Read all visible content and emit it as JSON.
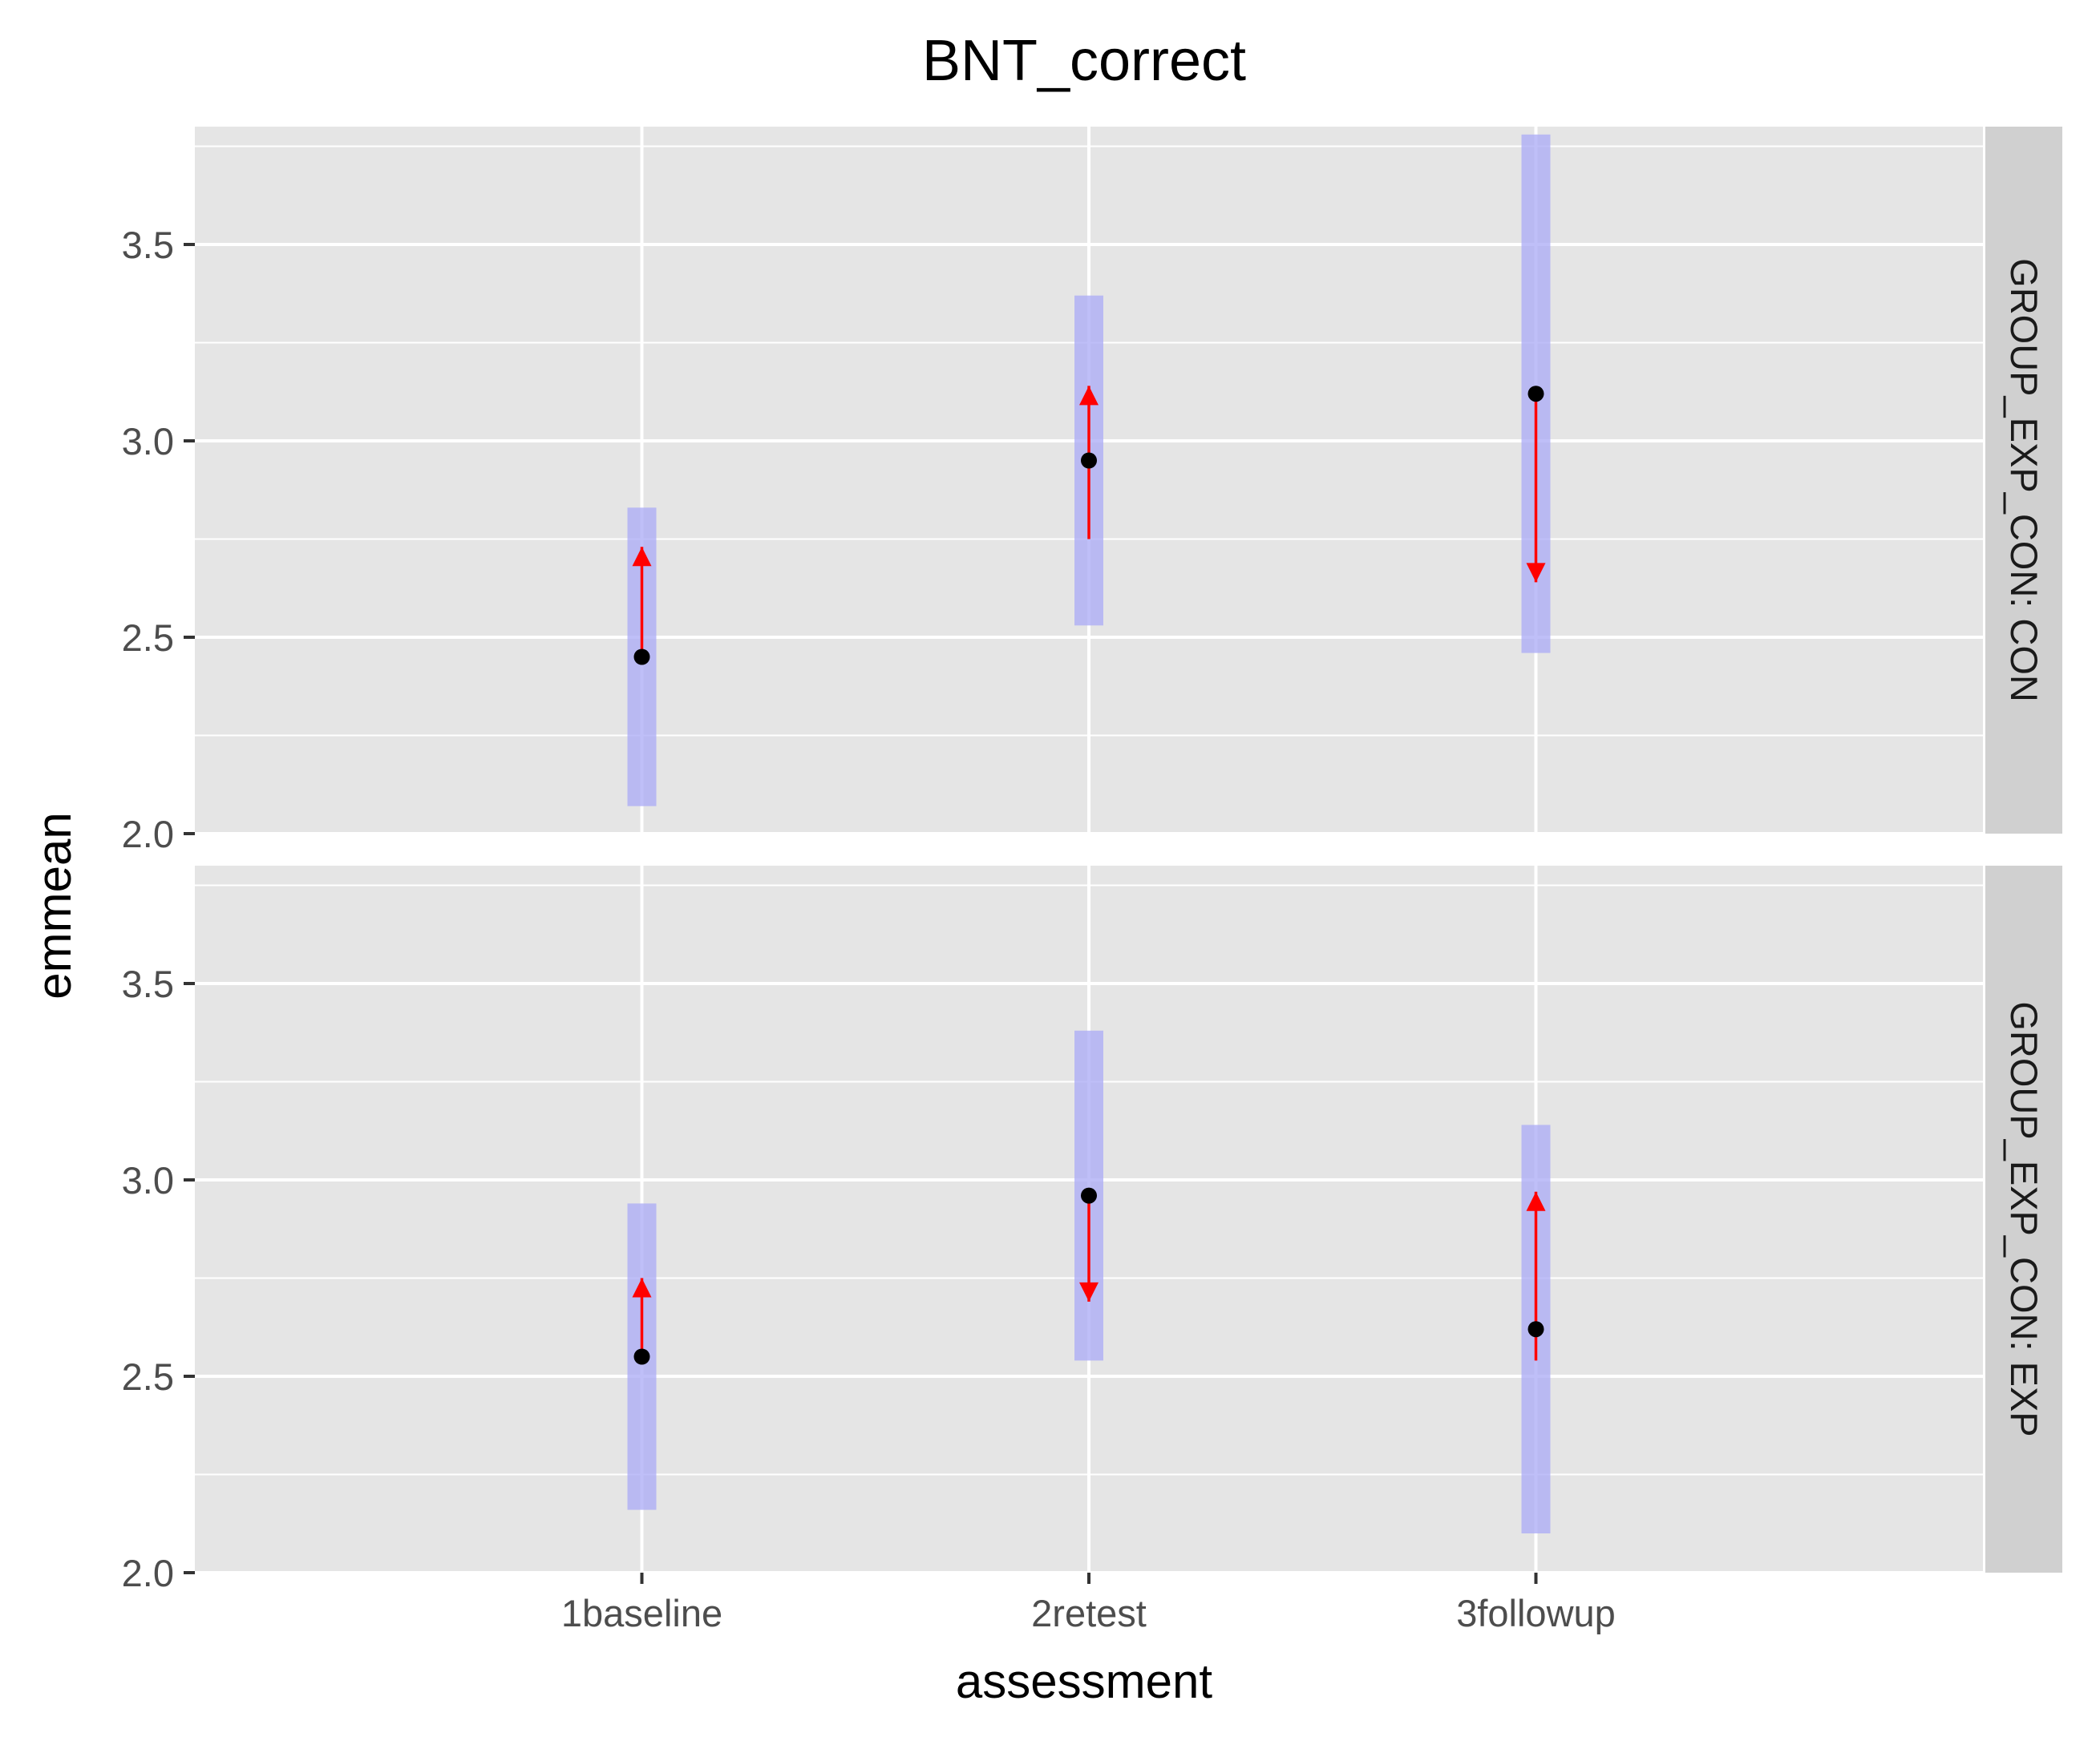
{
  "chart_data": {
    "type": "pointrange",
    "title": "BNT_correct",
    "xlabel": "assessment",
    "ylabel": "emmean",
    "categories": [
      "1baseline",
      "2retest",
      "3followup"
    ],
    "ylim": [
      2.0,
      3.8
    ],
    "yticks": [
      2.0,
      2.5,
      3.0,
      3.5
    ],
    "ytick_labels": [
      "2.0",
      "2.5",
      "3.0",
      "3.5"
    ],
    "grid": true,
    "colors": {
      "panel_bg": "#e5e5e5",
      "strip_bg": "#d0d0d0",
      "grid": "#ffffff",
      "ci_band": "#aaaaf5",
      "arrow": "#ff0000",
      "point": "#000000"
    },
    "facets": [
      {
        "label": "GROUP_EXP_CON: CON",
        "points": [
          {
            "category": "1baseline",
            "emmean": 2.45,
            "lower_CL": 2.07,
            "upper_CL": 2.83,
            "arrow_from": 2.45,
            "arrow_to": 2.73
          },
          {
            "category": "2retest",
            "emmean": 2.95,
            "lower_CL": 2.53,
            "upper_CL": 3.37,
            "arrow_from": 2.75,
            "arrow_to": 3.14
          },
          {
            "category": "3followup",
            "emmean": 3.12,
            "lower_CL": 2.46,
            "upper_CL": 3.78,
            "arrow_from": 3.12,
            "arrow_to": 2.64
          }
        ]
      },
      {
        "label": "GROUP_EXP_CON: EXP",
        "points": [
          {
            "category": "1baseline",
            "emmean": 2.55,
            "lower_CL": 2.16,
            "upper_CL": 2.94,
            "arrow_from": 2.55,
            "arrow_to": 2.75
          },
          {
            "category": "2retest",
            "emmean": 2.96,
            "lower_CL": 2.54,
            "upper_CL": 3.38,
            "arrow_from": 2.96,
            "arrow_to": 2.69
          },
          {
            "category": "3followup",
            "emmean": 2.62,
            "lower_CL": 2.1,
            "upper_CL": 3.14,
            "arrow_from": 2.54,
            "arrow_to": 2.97
          }
        ]
      }
    ]
  }
}
